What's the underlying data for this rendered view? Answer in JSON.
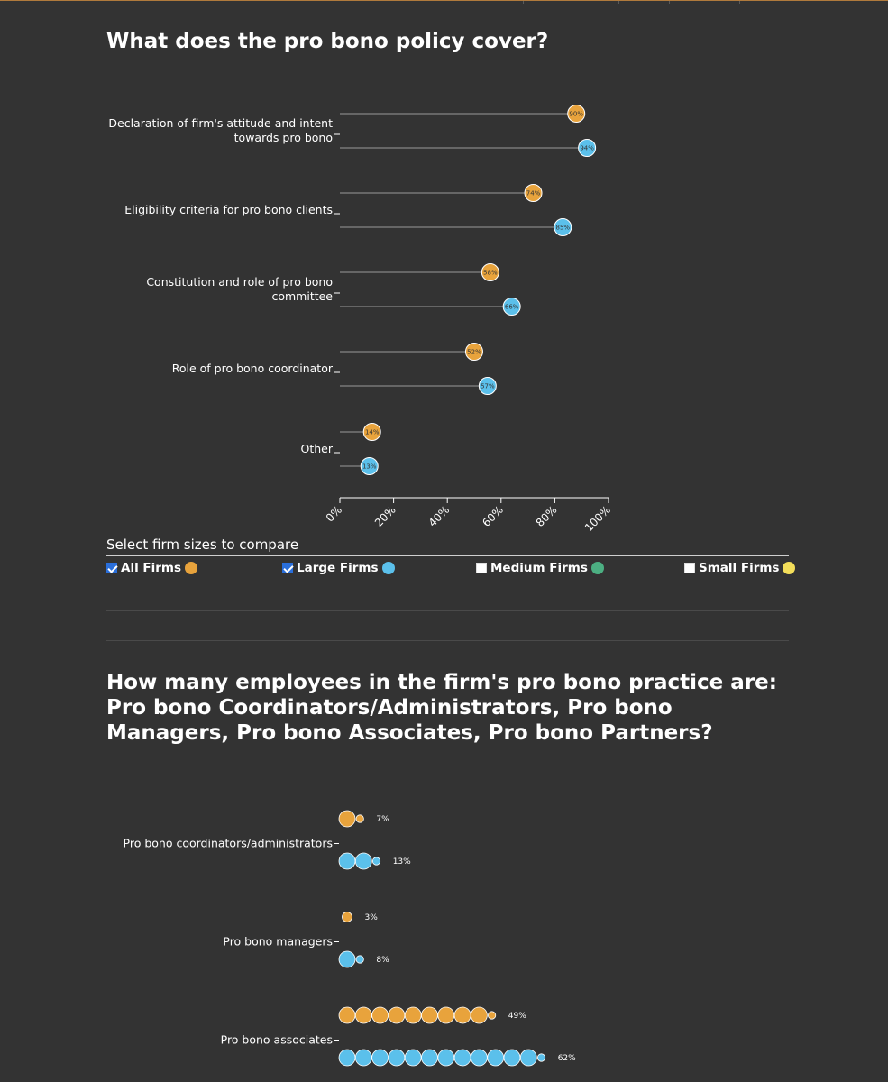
{
  "colors": {
    "all_firms": "#e8a33c",
    "large_firms": "#5bc0eb",
    "medium_firms": "#4caf82",
    "small_firms": "#f3de5a",
    "stem_line": "#9a9a9a",
    "axis": "#ffffff"
  },
  "section1": {
    "title": "What does the pro bono policy cover?"
  },
  "controls": {
    "heading": "Select firm sizes to compare",
    "options": [
      {
        "label": "All Firms",
        "checked": true,
        "color": "#e8a33c"
      },
      {
        "label": "Large Firms",
        "checked": true,
        "color": "#5bc0eb"
      },
      {
        "label": "Medium Firms",
        "checked": false,
        "color": "#4caf82"
      },
      {
        "label": "Small Firms",
        "checked": false,
        "color": "#f3de5a"
      }
    ]
  },
  "section2": {
    "title": "How many employees in the firm's pro bono practice are: Pro bono Coordinators/Administrators, Pro bono Managers, Pro bono Associates, Pro bono Partners?"
  },
  "chart_data": [
    {
      "type": "lollipop",
      "title": "What does the pro bono policy cover?",
      "xlim": [
        0,
        100
      ],
      "x_ticks": [
        "0%",
        "20%",
        "40%",
        "60%",
        "80%",
        "100%"
      ],
      "categories": [
        "Declaration of firm's attitude and intent towards pro bono",
        "Eligibility criteria for pro bono clients",
        "Constitution and role of pro bono committee",
        "Role of pro bono coordinator",
        "Other"
      ],
      "series": [
        {
          "name": "All Firms",
          "color": "#e8a33c",
          "values": [
            90,
            74,
            58,
            52,
            14
          ],
          "labels": [
            "90%",
            "74%",
            "58%",
            "52%",
            "14%"
          ]
        },
        {
          "name": "Large Firms",
          "color": "#5bc0eb",
          "values": [
            94,
            85,
            66,
            57,
            13
          ],
          "labels": [
            "94%",
            "85%",
            "66%",
            "57%",
            "13%"
          ]
        }
      ]
    },
    {
      "type": "dot-count",
      "title": "How many employees in the firm's pro bono practice are: Pro bono Coordinators/Administrators, Pro bono Managers, Pro bono Associates, Pro bono Partners?",
      "categories": [
        "Pro bono coordinators/administrators",
        "Pro bono managers",
        "Pro bono associates"
      ],
      "series": [
        {
          "name": "All Firms",
          "color": "#e8a33c",
          "values": [
            7,
            3,
            49
          ],
          "labels": [
            "7%",
            "3%",
            "49%"
          ]
        },
        {
          "name": "Large Firms",
          "color": "#5bc0eb",
          "values": [
            13,
            8,
            62
          ],
          "labels": [
            "13%",
            "8%",
            "62%"
          ]
        }
      ],
      "unit_per_dot": 5
    }
  ]
}
